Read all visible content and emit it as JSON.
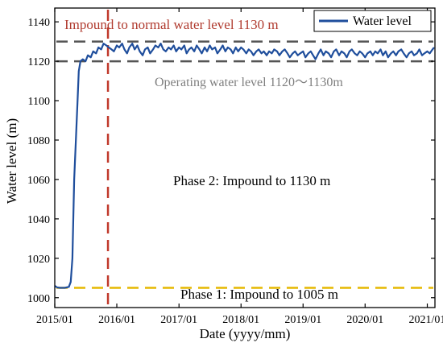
{
  "chart_data": {
    "type": "line",
    "xlabel": "Date (yyyy/mm)",
    "ylabel": "Water level (m)",
    "x_ticks": [
      "2015/01",
      "2016/01",
      "2017/01",
      "2018/01",
      "2019/01",
      "2020/01",
      "2021/01"
    ],
    "y_ticks": [
      1000,
      1020,
      1040,
      1060,
      1080,
      1100,
      1120,
      1140
    ],
    "xlim": [
      "2015/01/01",
      "2021/02/15"
    ],
    "ylim": [
      995,
      1147
    ],
    "legend": {
      "position": "top-right",
      "entries": [
        "Water level"
      ]
    },
    "series": [
      {
        "name": "Water level",
        "color": "#1f4e9c",
        "points": [
          [
            "2015/01/01",
            1006
          ],
          [
            "2015/01/15",
            1005.2
          ],
          [
            "2015/02/01",
            1005
          ],
          [
            "2015/03/01",
            1005
          ],
          [
            "2015/03/25",
            1005.5
          ],
          [
            "2015/04/05",
            1008
          ],
          [
            "2015/04/15",
            1020
          ],
          [
            "2015/04/25",
            1060
          ],
          [
            "2015/05/05",
            1080
          ],
          [
            "2015/05/15",
            1100
          ],
          [
            "2015/05/22",
            1115
          ],
          [
            "2015/06/01",
            1120
          ],
          [
            "2015/06/15",
            1121
          ],
          [
            "2015/07/01",
            1120
          ],
          [
            "2015/07/15",
            1123
          ],
          [
            "2015/08/01",
            1122
          ],
          [
            "2015/08/15",
            1125
          ],
          [
            "2015/09/01",
            1124
          ],
          [
            "2015/09/15",
            1127
          ],
          [
            "2015/10/01",
            1126
          ],
          [
            "2015/10/15",
            1129
          ],
          [
            "2015/11/01",
            1128
          ],
          [
            "2015/11/15",
            1127
          ],
          [
            "2015/12/01",
            1126
          ],
          [
            "2015/12/15",
            1125
          ],
          [
            "2016/01/01",
            1128
          ],
          [
            "2016/01/15",
            1127
          ],
          [
            "2016/02/01",
            1129
          ],
          [
            "2016/02/15",
            1126
          ],
          [
            "2016/03/01",
            1124
          ],
          [
            "2016/03/15",
            1127
          ],
          [
            "2016/04/01",
            1129
          ],
          [
            "2016/04/15",
            1126
          ],
          [
            "2016/05/01",
            1128
          ],
          [
            "2016/05/15",
            1125
          ],
          [
            "2016/06/01",
            1123
          ],
          [
            "2016/06/15",
            1126
          ],
          [
            "2016/07/01",
            1127
          ],
          [
            "2016/07/15",
            1124
          ],
          [
            "2016/08/01",
            1126
          ],
          [
            "2016/08/15",
            1128
          ],
          [
            "2016/09/01",
            1127
          ],
          [
            "2016/09/15",
            1129
          ],
          [
            "2016/10/01",
            1126
          ],
          [
            "2016/10/15",
            1125
          ],
          [
            "2016/11/01",
            1127
          ],
          [
            "2016/11/15",
            1126
          ],
          [
            "2016/12/01",
            1128
          ],
          [
            "2016/12/15",
            1125
          ],
          [
            "2017/01/01",
            1127
          ],
          [
            "2017/01/15",
            1126
          ],
          [
            "2017/02/01",
            1128
          ],
          [
            "2017/02/15",
            1124
          ],
          [
            "2017/03/01",
            1126
          ],
          [
            "2017/03/15",
            1127
          ],
          [
            "2017/04/01",
            1125
          ],
          [
            "2017/04/15",
            1128
          ],
          [
            "2017/05/01",
            1126
          ],
          [
            "2017/05/15",
            1124
          ],
          [
            "2017/06/01",
            1127
          ],
          [
            "2017/06/15",
            1125
          ],
          [
            "2017/07/01",
            1128
          ],
          [
            "2017/07/15",
            1126
          ],
          [
            "2017/08/01",
            1127
          ],
          [
            "2017/08/15",
            1124
          ],
          [
            "2017/09/01",
            1126
          ],
          [
            "2017/09/15",
            1128
          ],
          [
            "2017/10/01",
            1125
          ],
          [
            "2017/10/15",
            1127
          ],
          [
            "2017/11/01",
            1126
          ],
          [
            "2017/11/15",
            1124
          ],
          [
            "2017/12/01",
            1127
          ],
          [
            "2017/12/15",
            1125
          ],
          [
            "2018/01/01",
            1127
          ],
          [
            "2018/01/15",
            1126
          ],
          [
            "2018/02/01",
            1124
          ],
          [
            "2018/02/15",
            1126
          ],
          [
            "2018/03/01",
            1125
          ],
          [
            "2018/03/15",
            1123
          ],
          [
            "2018/04/01",
            1125
          ],
          [
            "2018/04/15",
            1126
          ],
          [
            "2018/05/01",
            1124
          ],
          [
            "2018/05/15",
            1125
          ],
          [
            "2018/06/01",
            1123
          ],
          [
            "2018/06/15",
            1125
          ],
          [
            "2018/07/01",
            1124
          ],
          [
            "2018/07/15",
            1126
          ],
          [
            "2018/08/01",
            1125
          ],
          [
            "2018/08/15",
            1123
          ],
          [
            "2018/09/01",
            1125
          ],
          [
            "2018/09/15",
            1126
          ],
          [
            "2018/10/01",
            1124
          ],
          [
            "2018/10/15",
            1122
          ],
          [
            "2018/11/01",
            1124
          ],
          [
            "2018/11/15",
            1125
          ],
          [
            "2018/12/01",
            1123
          ],
          [
            "2018/12/15",
            1124
          ],
          [
            "2019/01/01",
            1125
          ],
          [
            "2019/01/15",
            1122
          ],
          [
            "2019/02/01",
            1124
          ],
          [
            "2019/02/15",
            1125
          ],
          [
            "2019/03/01",
            1123
          ],
          [
            "2019/03/15",
            1121
          ],
          [
            "2019/04/01",
            1124
          ],
          [
            "2019/04/15",
            1126
          ],
          [
            "2019/05/01",
            1123
          ],
          [
            "2019/05/15",
            1125
          ],
          [
            "2019/06/01",
            1124
          ],
          [
            "2019/06/15",
            1122
          ],
          [
            "2019/07/01",
            1125
          ],
          [
            "2019/07/15",
            1126
          ],
          [
            "2019/08/01",
            1123
          ],
          [
            "2019/08/15",
            1125
          ],
          [
            "2019/09/01",
            1124
          ],
          [
            "2019/09/15",
            1122
          ],
          [
            "2019/10/01",
            1125
          ],
          [
            "2019/10/15",
            1126
          ],
          [
            "2019/11/01",
            1124
          ],
          [
            "2019/11/15",
            1123
          ],
          [
            "2019/12/01",
            1125
          ],
          [
            "2019/12/15",
            1124
          ],
          [
            "2020/01/01",
            1122
          ],
          [
            "2020/01/15",
            1124
          ],
          [
            "2020/02/01",
            1125
          ],
          [
            "2020/02/15",
            1123
          ],
          [
            "2020/03/01",
            1125
          ],
          [
            "2020/03/15",
            1124
          ],
          [
            "2020/04/01",
            1126
          ],
          [
            "2020/04/15",
            1123
          ],
          [
            "2020/05/01",
            1125
          ],
          [
            "2020/05/15",
            1122
          ],
          [
            "2020/06/01",
            1124
          ],
          [
            "2020/06/15",
            1125
          ],
          [
            "2020/07/01",
            1123
          ],
          [
            "2020/07/15",
            1125
          ],
          [
            "2020/08/01",
            1126
          ],
          [
            "2020/08/15",
            1124
          ],
          [
            "2020/09/01",
            1122
          ],
          [
            "2020/09/15",
            1124
          ],
          [
            "2020/10/01",
            1125
          ],
          [
            "2020/10/15",
            1123
          ],
          [
            "2020/11/01",
            1124
          ],
          [
            "2020/11/15",
            1126
          ],
          [
            "2020/12/01",
            1123
          ],
          [
            "2020/12/15",
            1124
          ],
          [
            "2021/01/01",
            1125
          ],
          [
            "2021/01/15",
            1124
          ],
          [
            "2021/02/01",
            1126
          ],
          [
            "2021/02/10",
            1127
          ]
        ]
      }
    ],
    "reference_lines": [
      {
        "orientation": "horizontal",
        "y": 1130,
        "color": "#555555",
        "style": "dashed"
      },
      {
        "orientation": "horizontal",
        "y": 1120,
        "color": "#555555",
        "style": "dashed"
      },
      {
        "orientation": "horizontal",
        "y": 1005,
        "color": "#e6b800",
        "style": "dashed"
      },
      {
        "orientation": "vertical",
        "x": "2015/11/10",
        "color": "#c0392b",
        "style": "dashed"
      }
    ],
    "annotations": [
      {
        "text": "Impound to normal water level 1130 m",
        "color": "#b03a2e"
      },
      {
        "text": "Operating water level 1120～1130m",
        "color": "#7f7f7f"
      },
      {
        "text": "Phase 2: Impound to 1130 m",
        "color": "#000000"
      },
      {
        "text": "Phase 1: Impound to 1005 m",
        "color": "#000000"
      }
    ]
  }
}
